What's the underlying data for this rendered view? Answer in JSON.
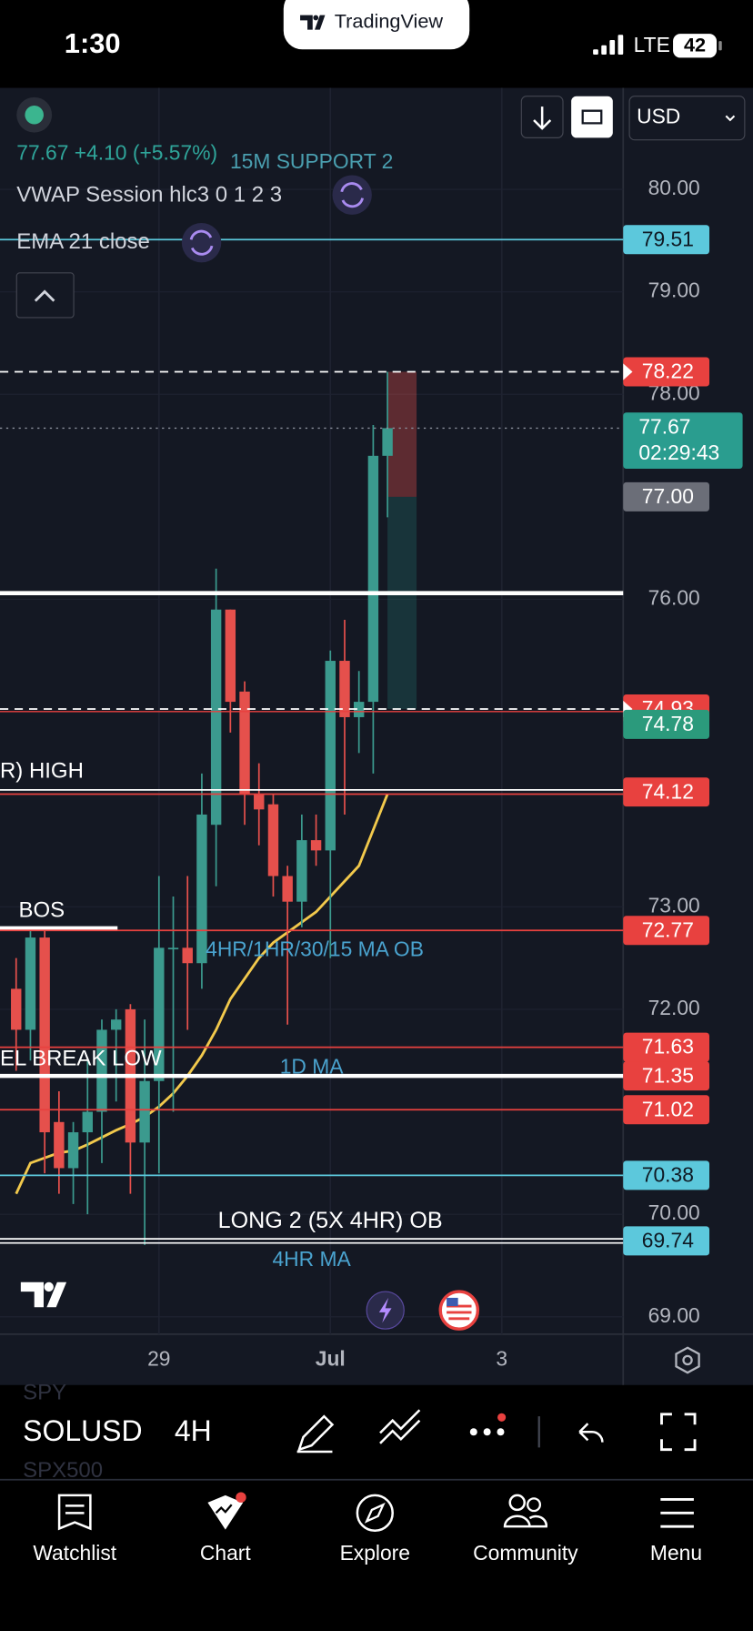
{
  "status_bar": {
    "time": "1:30",
    "app": "TradingView",
    "network": "LTE",
    "battery": "42"
  },
  "legend": {
    "price": "77.67 +4.10 (+5.57%)",
    "vwap": "VWAP Session hlc3 0 1 2 3",
    "ema": "EMA 21 close"
  },
  "currency": "USD",
  "toolbar": {
    "symbol": "SOLUSD",
    "interval": "4H",
    "above": "SPY",
    "below": "SPX500"
  },
  "nav": [
    "Watchlist",
    "Chart",
    "Explore",
    "Community",
    "Menu"
  ],
  "chart_data": {
    "type": "candlestick",
    "up_color": "#3b9a8e",
    "down_color": "#e5504c",
    "open": [
      72.2,
      71.8,
      72.7,
      70.9,
      70.45,
      70.8,
      71.0,
      71.8,
      72.0,
      70.7,
      71.3,
      72.6,
      72.6,
      72.45,
      73.8,
      75.9,
      75.1,
      74.1,
      74.0,
      73.3,
      73.05,
      73.65,
      73.55,
      75.4,
      74.85,
      75.0,
      77.4
    ],
    "high": [
      72.5,
      72.8,
      72.8,
      71.2,
      70.9,
      71.5,
      71.9,
      72.0,
      72.05,
      71.9,
      73.3,
      73.1,
      73.3,
      74.3,
      76.3,
      75.9,
      75.2,
      74.4,
      74.1,
      73.4,
      73.9,
      73.9,
      75.5,
      75.8,
      75.3,
      77.7,
      78.22
    ],
    "low": [
      71.4,
      71.5,
      70.4,
      70.2,
      70.1,
      70.0,
      70.5,
      71.1,
      70.2,
      69.7,
      70.4,
      71.0,
      71.8,
      72.2,
      73.2,
      74.7,
      73.8,
      73.6,
      73.1,
      71.85,
      72.8,
      73.4,
      72.5,
      73.9,
      74.5,
      74.3,
      76.8
    ],
    "close": [
      71.8,
      72.7,
      70.8,
      70.45,
      70.8,
      71.0,
      71.8,
      71.9,
      70.7,
      71.3,
      72.6,
      72.6,
      72.45,
      73.9,
      75.9,
      75.0,
      74.1,
      73.95,
      73.3,
      73.05,
      73.65,
      73.55,
      75.4,
      74.85,
      75.0,
      77.4,
      77.67
    ],
    "ma": {
      "color": "#f2c94c",
      "values": [
        70.2,
        70.5,
        70.55,
        70.6,
        70.62,
        70.68,
        70.75,
        70.82,
        70.88,
        70.95,
        71.05,
        71.18,
        71.35,
        71.55,
        71.8,
        72.1,
        72.3,
        72.5,
        72.65,
        72.75,
        72.85,
        72.95,
        73.1,
        73.25,
        73.4,
        73.75,
        74.1
      ]
    },
    "xlim": [
      -1.13,
      42.5
    ],
    "xticks": [
      {
        "value": 10,
        "label": "29"
      },
      {
        "value": 22,
        "label": "Jul"
      },
      {
        "value": 34,
        "label": "3"
      }
    ],
    "ylim": [
      68.83,
      80.99
    ],
    "yticks": [
      {
        "value": 80,
        "label": "80.00"
      },
      {
        "value": 79,
        "label": "79.00"
      },
      {
        "value": 78,
        "label": "78.00"
      },
      {
        "value": 76,
        "label": "76.00"
      },
      {
        "value": 73,
        "label": "73.00"
      },
      {
        "value": 72,
        "label": "72.00"
      },
      {
        "value": 70,
        "label": "70.00"
      },
      {
        "value": 69,
        "label": "69.00"
      }
    ],
    "grid": true,
    "levels": [
      {
        "value": 79.51,
        "label": "79.51",
        "tag": "#5cc8dc",
        "ink": "#0f1a24",
        "line": "solid",
        "stroke": "#5cc8dc"
      },
      {
        "value": 78.22,
        "label": "78.22",
        "tag": "#e8413f",
        "ink": "#ffffff",
        "line": "dashed",
        "stroke": "#ffffff",
        "arrow": true
      },
      {
        "value": 77.67,
        "label": "77.67",
        "sublabel": "02:29:43",
        "tag": "#2a9d8f",
        "ink": "#ffffff",
        "line": "dotted",
        "stroke": "#8a8f9c"
      },
      {
        "value": 77,
        "label": "77.00",
        "tag": "#6b6e78",
        "ink": "#ffffff",
        "line": "none"
      },
      {
        "value": 74.93,
        "label": "74.93",
        "tag": "#e8413f",
        "ink": "#ffffff",
        "line": "dashed",
        "stroke": "#ffffff",
        "stroke2": "#e8413f",
        "arrow": true
      },
      {
        "value": 74.78,
        "label": "74.78",
        "tag": "#2b9a7c",
        "ink": "#ffffff",
        "line": "none"
      },
      {
        "value": 74.12,
        "label": "74.12",
        "tag": "#e8413f",
        "ink": "#ffffff",
        "line": "double",
        "stroke": "#ffffff",
        "stroke2": "#e8413f"
      },
      {
        "value": 72.77,
        "label": "72.77",
        "tag": "#e8413f",
        "ink": "#ffffff",
        "line": "solid",
        "stroke": "#e8413f"
      },
      {
        "value": 71.63,
        "label": "71.63",
        "tag": "#e8413f",
        "ink": "#ffffff",
        "line": "solid",
        "stroke": "#e8413f"
      },
      {
        "value": 71.35,
        "label": "71.35",
        "tag": "#e8413f",
        "ink": "#ffffff",
        "line": "thick",
        "stroke": "#ffffff"
      },
      {
        "value": 71.02,
        "label": "71.02",
        "tag": "#e8413f",
        "ink": "#ffffff",
        "line": "solid",
        "stroke": "#e8413f"
      },
      {
        "value": 70.38,
        "label": "70.38",
        "tag": "#5cc8dc",
        "ink": "#0f1a24",
        "line": "solid",
        "stroke": "#5cc8dc"
      },
      {
        "value": 69.74,
        "label": "69.74",
        "tag": "#5cc8dc",
        "ink": "#0f1a24",
        "line": "double",
        "stroke": "#ffffff",
        "stroke2": "#ffffff"
      }
    ],
    "drawings": [
      {
        "value": 76.06,
        "line": "thick",
        "stroke": "#ffffff"
      },
      {
        "value": 72.79,
        "line": "thick",
        "stroke": "#ffffff",
        "until": 7.1
      }
    ],
    "position": {
      "stop_color": "#e5504c",
      "target_color": "#2a9d8f"
    },
    "annotations": [
      "15M SUPPORT 2",
      "R) HIGH",
      "BOS",
      "4HR/1HR/30/15 MA OB",
      "EL BREAK LOW",
      "1D MA",
      "LONG 2 (5X 4HR) OB",
      "4HR MA"
    ]
  }
}
